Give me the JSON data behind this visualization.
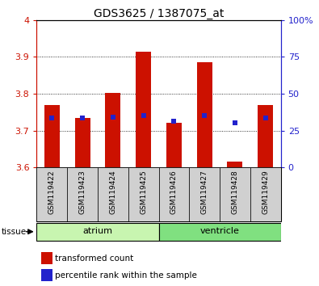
{
  "title": "GDS3625 / 1387075_at",
  "samples": [
    "GSM119422",
    "GSM119423",
    "GSM119424",
    "GSM119425",
    "GSM119426",
    "GSM119427",
    "GSM119428",
    "GSM119429"
  ],
  "red_bar_tops": [
    3.77,
    3.735,
    3.802,
    3.915,
    3.72,
    3.885,
    3.615,
    3.77
  ],
  "blue_marker_y": [
    3.735,
    3.735,
    3.737,
    3.74,
    3.725,
    3.74,
    3.72,
    3.735
  ],
  "baseline": 3.6,
  "ylim_left": [
    3.6,
    4.0
  ],
  "ylim_right": [
    0,
    100
  ],
  "yticks_left": [
    3.6,
    3.7,
    3.8,
    3.9,
    4.0
  ],
  "ytick_labels_left": [
    "3.6",
    "3.7",
    "3.8",
    "3.9",
    "4"
  ],
  "yticks_right": [
    0,
    25,
    50,
    75,
    100
  ],
  "ytick_labels_right": [
    "0",
    "25",
    "50",
    "75",
    "100%"
  ],
  "groups": [
    {
      "label": "atrium",
      "indices": [
        0,
        1,
        2,
        3
      ]
    },
    {
      "label": "ventricle",
      "indices": [
        4,
        5,
        6,
        7
      ]
    }
  ],
  "group_colors": [
    "#c8f5b0",
    "#80e080"
  ],
  "tissue_label": "tissue",
  "bar_color": "#cc1100",
  "blue_color": "#2222cc",
  "tick_bg_color": "#d0d0d0",
  "legend_red_label": "transformed count",
  "legend_blue_label": "percentile rank within the sample",
  "title_fontsize": 10,
  "bar_width": 0.5
}
